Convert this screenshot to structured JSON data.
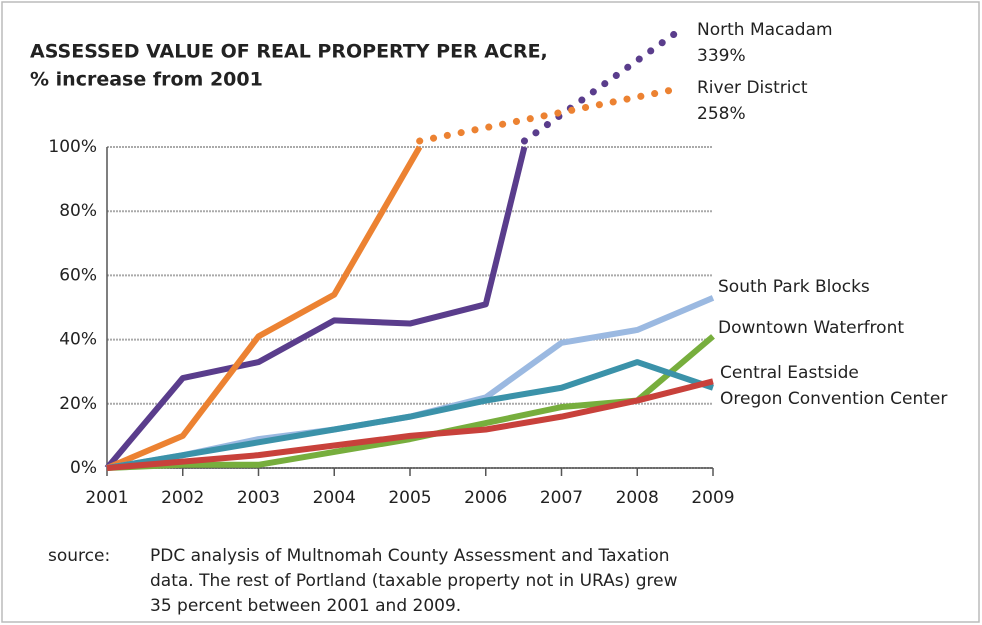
{
  "chart_data": {
    "type": "line",
    "title": [
      "ASSESSED VALUE OF REAL PROPERTY PER ACRE,",
      "% increase from 2001"
    ],
    "x": [
      2001,
      2002,
      2003,
      2004,
      2005,
      2006,
      2007,
      2008,
      2009
    ],
    "xlim": [
      2001,
      2009
    ],
    "xticks": [
      2001,
      2002,
      2003,
      2004,
      2005,
      2006,
      2007,
      2008,
      2009
    ],
    "ylim": [
      0,
      100
    ],
    "yticks": [
      {
        "value": 0,
        "label": "0%"
      },
      {
        "value": 20,
        "label": "20%"
      },
      {
        "value": 40,
        "label": "40%"
      },
      {
        "value": 60,
        "label": "60%"
      },
      {
        "value": 80,
        "label": "80%"
      },
      {
        "value": 100,
        "label": "100%"
      }
    ],
    "grid": true,
    "series": [
      {
        "name": "North Macadam",
        "color": "#5a3d8c",
        "values": [
          0,
          28,
          33,
          46,
          45,
          51,
          null,
          null,
          339
        ],
        "value_labels": [
          null,
          null,
          null,
          null,
          null,
          null,
          null,
          null,
          "339%"
        ]
      },
      {
        "name": "River District",
        "color": "#ec8232",
        "values": [
          0,
          10,
          41,
          54,
          null,
          null,
          null,
          null,
          258
        ],
        "value_labels": [
          null,
          null,
          null,
          null,
          null,
          null,
          null,
          null,
          "258%"
        ]
      },
      {
        "name": "South Park Blocks",
        "color": "#9bb9e1",
        "values": [
          0,
          4,
          9,
          12,
          16,
          22,
          39,
          43,
          53
        ]
      },
      {
        "name": "Downtown Waterfront",
        "color": "#77ae3d",
        "values": [
          0,
          1,
          1,
          5,
          9,
          14,
          19,
          21,
          41
        ]
      },
      {
        "name": "Central Eastside",
        "color": "#3b92a9",
        "values": [
          0,
          4,
          8,
          12,
          16,
          21,
          25,
          33,
          25
        ]
      },
      {
        "name": "Oregon Convention Center",
        "color": "#c8413b",
        "values": [
          0,
          2,
          4,
          7,
          10,
          12,
          16,
          21,
          27
        ]
      }
    ],
    "source_label": "source:",
    "source": [
      "PDC analysis of Multnomah County Assessment and Taxation",
      "data. The rest of Portland (taxable property not in URAs) grew",
      "35 percent between 2001 and 2009."
    ]
  }
}
